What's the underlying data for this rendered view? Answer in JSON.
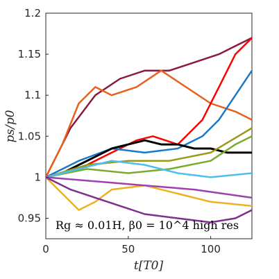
{
  "chart_data": {
    "type": "line",
    "xlabel": "t[T0]",
    "ylabel": "ps/p0",
    "xlim": [
      0,
      125
    ],
    "ylim": [
      0.925,
      1.2
    ],
    "xticks": [
      0,
      50,
      100
    ],
    "yticks": [
      0.95,
      1,
      1.05,
      1.1,
      1.15,
      1.2
    ],
    "xtick_labels": [
      "0",
      "50",
      "100"
    ],
    "ytick_labels": [
      "0.95",
      "1",
      "1.05",
      "1.1",
      "1.15",
      "1.2"
    ],
    "annotation": "Rg ≈ 0.01H, β0 = 10^4 high res",
    "grid": false,
    "series": [
      {
        "color": "#8B1A3A",
        "x": [
          0,
          15,
          30,
          45,
          60,
          75,
          90,
          105,
          115,
          125
        ],
        "y": [
          1.0,
          1.06,
          1.1,
          1.12,
          1.13,
          1.13,
          1.14,
          1.15,
          1.16,
          1.17
        ]
      },
      {
        "color": "#E8611A",
        "x": [
          0,
          10,
          20,
          30,
          40,
          55,
          70,
          85,
          100,
          115,
          125
        ],
        "y": [
          1.0,
          1.04,
          1.09,
          1.11,
          1.1,
          1.11,
          1.13,
          1.11,
          1.09,
          1.08,
          1.07
        ]
      },
      {
        "color": "#FF0000",
        "x": [
          0,
          20,
          40,
          55,
          65,
          80,
          95,
          105,
          115,
          125
        ],
        "y": [
          1.0,
          1.01,
          1.03,
          1.045,
          1.05,
          1.04,
          1.07,
          1.11,
          1.15,
          1.17
        ]
      },
      {
        "color": "#1A78C8",
        "x": [
          0,
          20,
          40,
          60,
          80,
          95,
          105,
          115,
          125
        ],
        "y": [
          1.0,
          1.02,
          1.035,
          1.03,
          1.035,
          1.05,
          1.07,
          1.1,
          1.13
        ]
      },
      {
        "color": "#000000",
        "x": [
          0,
          10,
          20,
          30,
          40,
          50,
          60,
          70,
          80,
          90,
          100,
          110,
          120,
          125
        ],
        "y": [
          1.0,
          1.005,
          1.015,
          1.025,
          1.035,
          1.04,
          1.045,
          1.04,
          1.04,
          1.035,
          1.035,
          1.03,
          1.03,
          1.03
        ]
      },
      {
        "color": "#77AC30",
        "x": [
          0,
          25,
          50,
          75,
          100,
          115,
          125
        ],
        "y": [
          1.0,
          1.01,
          1.005,
          1.01,
          1.02,
          1.04,
          1.05
        ]
      },
      {
        "color": "#9B9B1A",
        "x": [
          0,
          25,
          50,
          75,
          100,
          125
        ],
        "y": [
          1.0,
          1.015,
          1.02,
          1.02,
          1.03,
          1.06
        ]
      },
      {
        "color": "#4DBEEE",
        "x": [
          0,
          20,
          40,
          60,
          80,
          100,
          125
        ],
        "y": [
          1.0,
          1.01,
          1.02,
          1.015,
          1.005,
          1.0,
          1.005
        ]
      },
      {
        "color": "#EDB120",
        "x": [
          0,
          10,
          20,
          30,
          40,
          60,
          80,
          100,
          125
        ],
        "y": [
          1.0,
          0.98,
          0.96,
          0.97,
          0.985,
          0.99,
          0.98,
          0.97,
          0.965
        ]
      },
      {
        "color": "#7E2F8E",
        "x": [
          0,
          15,
          30,
          45,
          60,
          80,
          100,
          115,
          125
        ],
        "y": [
          1.0,
          0.985,
          0.975,
          0.965,
          0.955,
          0.95,
          0.945,
          0.95,
          0.96
        ]
      },
      {
        "color": "#A040B0",
        "x": [
          0,
          30,
          60,
          90,
          125
        ],
        "y": [
          1.0,
          0.995,
          0.99,
          0.985,
          0.975
        ]
      }
    ]
  }
}
